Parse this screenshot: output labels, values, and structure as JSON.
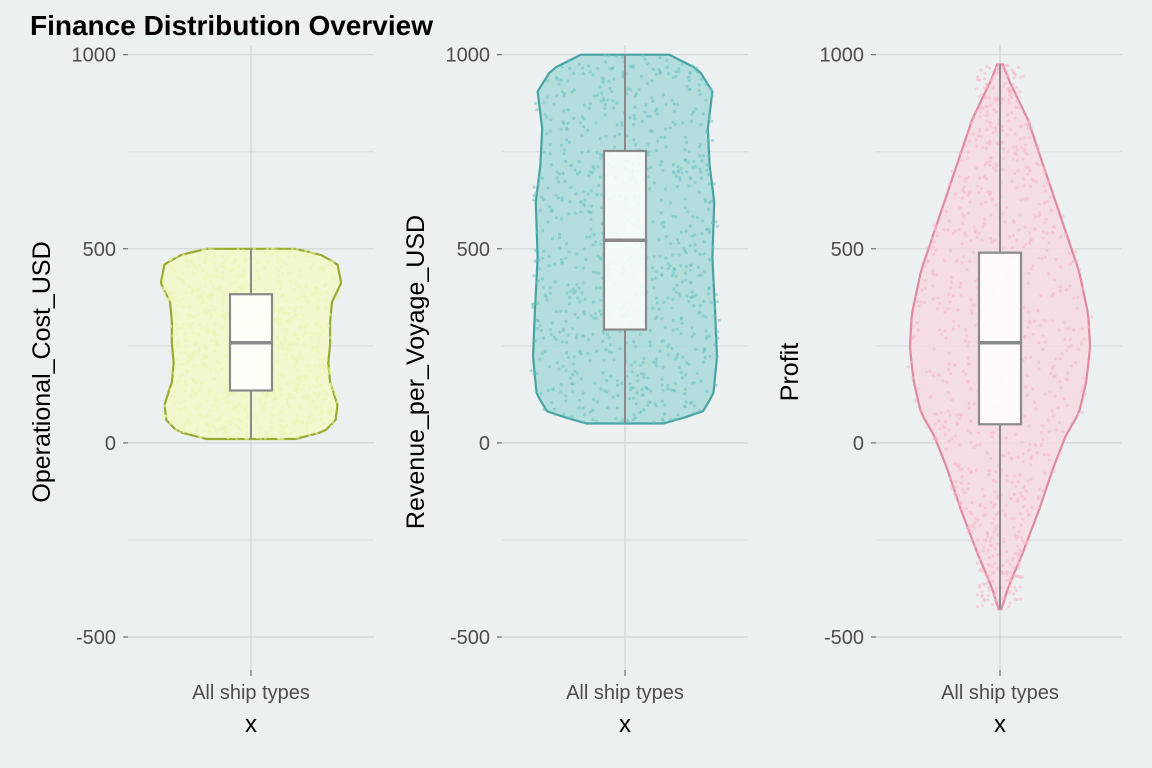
{
  "title": "Finance Distribution Overview",
  "chart_data": [
    {
      "type": "violin",
      "title": "",
      "xlabel": "x",
      "ylabel": "Operational_Cost_USD",
      "categories": [
        "All ship types"
      ],
      "y_ticks": [
        -500,
        0,
        500,
        1000
      ],
      "ylim": [
        -585,
        1025
      ],
      "grid": true,
      "fill": "#f3f8c8",
      "stroke": "#9aaa32",
      "range": [
        10,
        500
      ],
      "box": {
        "q1": 135,
        "median": 258,
        "q3": 383,
        "whisker_low": 10,
        "whisker_high": 500
      }
    },
    {
      "type": "violin",
      "title": "",
      "xlabel": "x",
      "ylabel": "Revenue_per_Voyage_USD",
      "categories": [
        "All ship types"
      ],
      "y_ticks": [
        -500,
        0,
        500,
        1000
      ],
      "ylim": [
        -585,
        1025
      ],
      "grid": true,
      "fill": "#a9d9d9",
      "stroke": "#4aa3a3",
      "range": [
        50,
        1000
      ],
      "box": {
        "q1": 292,
        "median": 522,
        "q3": 752,
        "whisker_low": 50,
        "whisker_high": 1000
      }
    },
    {
      "type": "violin",
      "title": "",
      "xlabel": "x",
      "ylabel": "Profit",
      "categories": [
        "All ship types"
      ],
      "y_ticks": [
        -500,
        0,
        500,
        1000
      ],
      "ylim": [
        -585,
        1025
      ],
      "grid": true,
      "fill": "#f5d9e0",
      "stroke": "#e08aa0",
      "range": [
        -428,
        975
      ],
      "box": {
        "q1": 48,
        "median": 258,
        "q3": 490,
        "whisker_low": -428,
        "whisker_high": 975
      }
    }
  ]
}
